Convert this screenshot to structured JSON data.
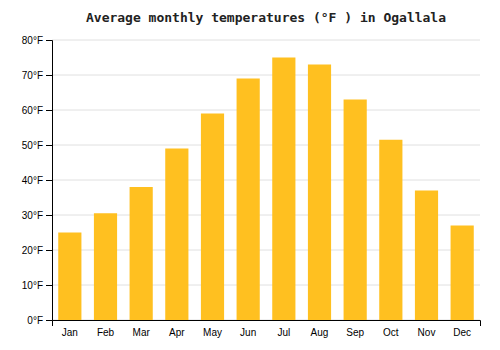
{
  "chart_data": {
    "type": "bar",
    "title": "Average monthly temperatures (°F ) in Ogallala",
    "categories": [
      "Jan",
      "Feb",
      "Mar",
      "Apr",
      "May",
      "Jun",
      "Jul",
      "Aug",
      "Sep",
      "Oct",
      "Nov",
      "Dec"
    ],
    "values": [
      25,
      30.5,
      38,
      49,
      59,
      69,
      75,
      73,
      63,
      51.5,
      37,
      27
    ],
    "color": "#FFC020",
    "ylim": [
      0,
      80
    ],
    "yticks": [
      {
        "value": 0,
        "label": "0°F"
      },
      {
        "value": 10,
        "label": "10°F"
      },
      {
        "value": 20,
        "label": "20°F"
      },
      {
        "value": 30,
        "label": "30°F"
      },
      {
        "value": 40,
        "label": "40°F"
      },
      {
        "value": 50,
        "label": "50°F"
      },
      {
        "value": 60,
        "label": "60°F"
      },
      {
        "value": 70,
        "label": "70°F"
      },
      {
        "value": 80,
        "label": "80°F"
      }
    ],
    "grid": true
  }
}
